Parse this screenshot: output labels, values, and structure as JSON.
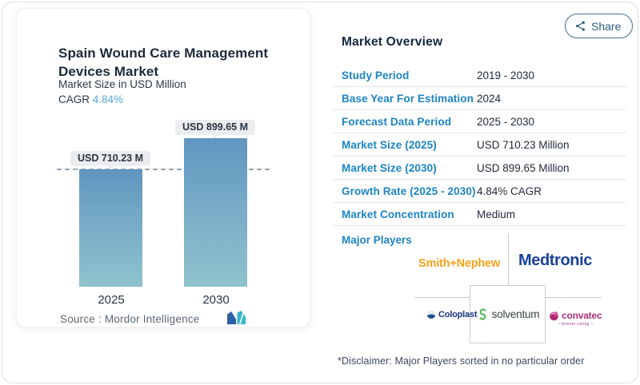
{
  "chart_card": {
    "title": "Spain Wound Care Management Devices Market",
    "subtitle": "Market Size in USD Million",
    "cagr_label": "CAGR",
    "cagr_value": "4.84%",
    "source_label": "Source :  ",
    "source_value": "Mordor Intelligence"
  },
  "chart_data": {
    "type": "bar",
    "title": "Spain Wound Care Management Devices Market",
    "ylabel": "Market Size in USD Million",
    "categories": [
      "2025",
      "2030"
    ],
    "values": [
      710.23,
      899.65
    ],
    "value_labels": [
      "USD 710.23 M",
      "USD 899.65 M"
    ],
    "reference_line": 710.23,
    "ylim": [
      0,
      899.65
    ],
    "grid": false,
    "bar_color_top": "#6095c0",
    "bar_color_bottom": "#8fc3cd"
  },
  "share_button": {
    "label": "Share"
  },
  "overview": {
    "title": "Market Overview",
    "rows": [
      {
        "label": "Study Period",
        "value": "2019 - 2030"
      },
      {
        "label": "Base Year For Estimation",
        "value": "2024"
      },
      {
        "label": "Forecast Data Period",
        "value": "2025 - 2030"
      },
      {
        "label": "Market Size (2025)",
        "value": "USD 710.23 Million"
      },
      {
        "label": "Market Size (2030)",
        "value": "USD 899.65 Million"
      },
      {
        "label": "Growth Rate (2025 - 2030)",
        "value": "4.84% CAGR"
      },
      {
        "label": "Market Concentration",
        "value": "Medium"
      }
    ],
    "major_players_label": "Major Players",
    "players": {
      "smith_nephew": "Smith+Nephew",
      "medtronic": "Medtronic",
      "coloplast": "Coloplast",
      "solventum": "solventum",
      "convatec": "convatec",
      "convatec_tagline": "~ forever caring ~"
    },
    "disclaimer": "*Disclaimer: Major Players sorted in no particular order"
  },
  "colors": {
    "row_label_blue": "#1d84c5",
    "heading_navy": "#14263f",
    "cagr_blue": "#56a8d9",
    "smith_nephew_orange": "#f6a21d",
    "medtronic_navy": "#1a429a",
    "coloplast_navy": "#16337a",
    "convatec_magenta": "#a5307c",
    "solventum_green": "#3cb54a",
    "mordor_blue": "#2d5fa6",
    "mordor_teal": "#38b6c9"
  }
}
